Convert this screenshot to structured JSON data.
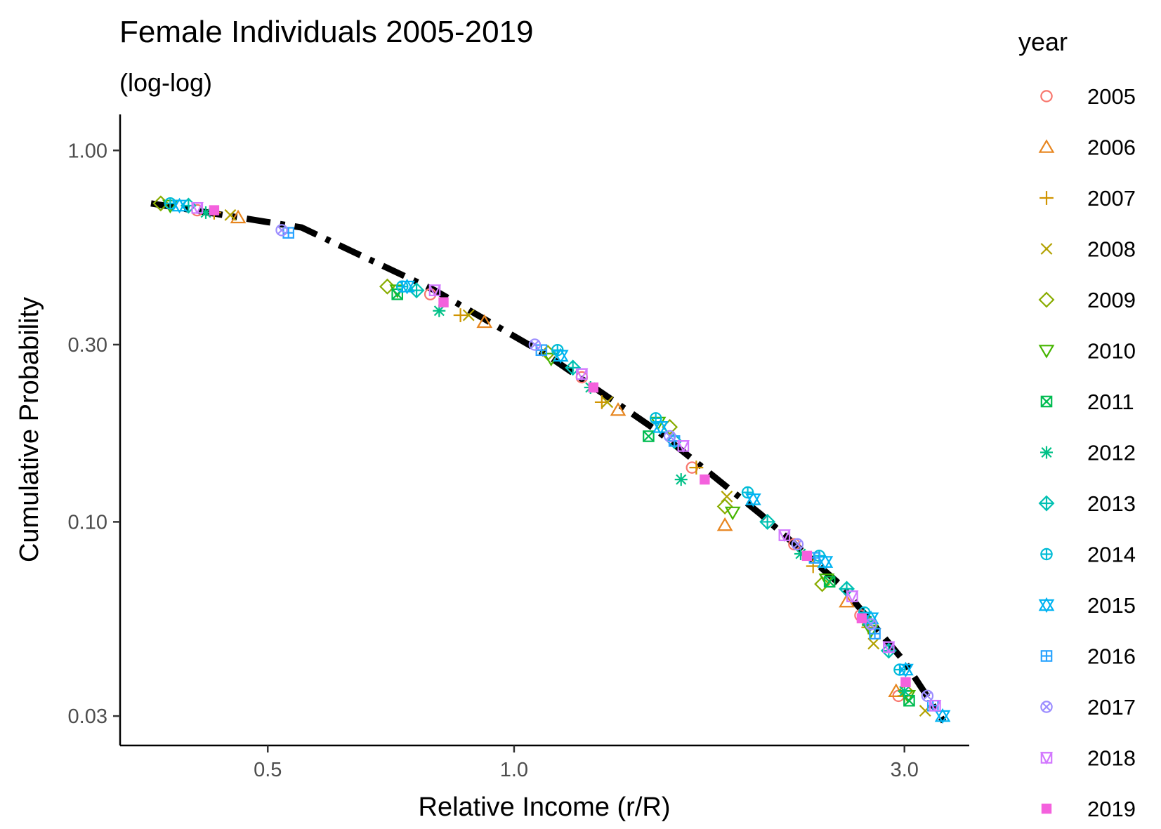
{
  "chart_data": {
    "type": "scatter",
    "title": "Female Individuals 2005-2019",
    "subtitle": "(log-log)",
    "xlabel": "Relative Income (r/R)",
    "ylabel": "Cumulative Probability",
    "x_scale": "log",
    "y_scale": "log",
    "xlim": [
      0.33,
      3.6
    ],
    "ylim": [
      0.025,
      1.25
    ],
    "x_ticks": [
      {
        "value": 0.5,
        "label": "0.5"
      },
      {
        "value": 1.0,
        "label": "1.0"
      },
      {
        "value": 3.0,
        "label": "3.0"
      }
    ],
    "y_ticks": [
      {
        "value": 1.0,
        "label": "1.00"
      },
      {
        "value": 0.3,
        "label": "0.30"
      },
      {
        "value": 0.1,
        "label": "0.10"
      },
      {
        "value": 0.03,
        "label": "0.03"
      }
    ],
    "grid": false,
    "legend_title": "year",
    "legend_position": "right",
    "fit_line": {
      "style": "dash-dot",
      "color": "#000000",
      "points": [
        [
          0.36,
          0.72
        ],
        [
          0.55,
          0.62
        ],
        [
          0.8,
          0.42
        ],
        [
          1.1,
          0.28
        ],
        [
          1.5,
          0.175
        ],
        [
          2.0,
          0.105
        ],
        [
          2.5,
          0.068
        ],
        [
          3.0,
          0.042
        ],
        [
          3.35,
          0.029
        ]
      ]
    },
    "series": [
      {
        "name": "2005",
        "shape": "circle",
        "color": "#F8766D",
        "points": [
          [
            0.41,
            0.69
          ],
          [
            0.79,
            0.41
          ],
          [
            1.21,
            0.245
          ],
          [
            1.65,
            0.14
          ],
          [
            2.2,
            0.087
          ],
          [
            2.65,
            0.056
          ],
          [
            2.95,
            0.034
          ]
        ]
      },
      {
        "name": "2006",
        "shape": "triangle",
        "color": "#E7851E",
        "points": [
          [
            0.46,
            0.66
          ],
          [
            0.92,
            0.345
          ],
          [
            1.34,
            0.2
          ],
          [
            1.81,
            0.098
          ],
          [
            2.55,
            0.061
          ],
          [
            2.93,
            0.035
          ]
        ]
      },
      {
        "name": "2007",
        "shape": "plus",
        "color": "#D09400",
        "points": [
          [
            0.43,
            0.68
          ],
          [
            0.86,
            0.36
          ],
          [
            1.28,
            0.21
          ],
          [
            1.67,
            0.14
          ],
          [
            2.32,
            0.076
          ],
          [
            2.71,
            0.052
          ],
          [
            3.0,
            0.034
          ]
        ]
      },
      {
        "name": "2008",
        "shape": "cross",
        "color": "#B2A100",
        "points": [
          [
            0.45,
            0.67
          ],
          [
            0.88,
            0.36
          ],
          [
            1.3,
            0.21
          ],
          [
            1.82,
            0.117
          ],
          [
            2.75,
            0.047
          ],
          [
            3.18,
            0.031
          ]
        ]
      },
      {
        "name": "2009",
        "shape": "diamond",
        "color": "#89AC00",
        "points": [
          [
            0.37,
            0.72
          ],
          [
            0.7,
            0.43
          ],
          [
            1.1,
            0.285
          ],
          [
            1.55,
            0.18
          ],
          [
            1.81,
            0.11
          ],
          [
            2.38,
            0.068
          ],
          [
            2.72,
            0.053
          ],
          [
            3.01,
            0.035
          ]
        ]
      },
      {
        "name": "2010",
        "shape": "triangle-down",
        "color": "#45B500",
        "points": [
          [
            0.38,
            0.71
          ],
          [
            0.72,
            0.42
          ],
          [
            1.11,
            0.275
          ],
          [
            1.5,
            0.185
          ],
          [
            1.85,
            0.106
          ],
          [
            2.41,
            0.07
          ],
          [
            2.73,
            0.051
          ],
          [
            3.03,
            0.034
          ]
        ]
      },
      {
        "name": "2011",
        "shape": "square-cross",
        "color": "#00BC51",
        "points": [
          [
            0.72,
            0.41
          ],
          [
            1.46,
            0.17
          ],
          [
            2.43,
            0.069
          ],
          [
            3.04,
            0.033
          ]
        ]
      },
      {
        "name": "2012",
        "shape": "asterisk",
        "color": "#00C087",
        "points": [
          [
            0.42,
            0.68
          ],
          [
            0.81,
            0.37
          ],
          [
            1.24,
            0.23
          ],
          [
            1.6,
            0.13
          ],
          [
            2.24,
            0.082
          ],
          [
            2.7,
            0.054
          ],
          [
            3.0,
            0.035
          ]
        ]
      },
      {
        "name": "2013",
        "shape": "diamond-plus",
        "color": "#00C0B2",
        "points": [
          [
            0.4,
            0.71
          ],
          [
            0.76,
            0.42
          ],
          [
            1.18,
            0.26
          ],
          [
            1.57,
            0.165
          ],
          [
            2.04,
            0.1
          ],
          [
            2.55,
            0.066
          ],
          [
            2.87,
            0.045
          ]
        ]
      },
      {
        "name": "2014",
        "shape": "circle-plus",
        "color": "#00BCD6",
        "points": [
          [
            0.38,
            0.72
          ],
          [
            0.73,
            0.43
          ],
          [
            1.13,
            0.29
          ],
          [
            1.49,
            0.19
          ],
          [
            1.93,
            0.12
          ],
          [
            2.36,
            0.081
          ],
          [
            2.68,
            0.057
          ],
          [
            2.96,
            0.04
          ]
        ]
      },
      {
        "name": "2015",
        "shape": "star",
        "color": "#00B3F2",
        "points": [
          [
            0.39,
            0.71
          ],
          [
            0.74,
            0.43
          ],
          [
            1.14,
            0.28
          ],
          [
            1.51,
            0.18
          ],
          [
            1.96,
            0.115
          ],
          [
            2.4,
            0.078
          ],
          [
            2.73,
            0.055
          ],
          [
            3.01,
            0.04
          ],
          [
            3.34,
            0.03
          ]
        ]
      },
      {
        "name": "2016",
        "shape": "square-plus",
        "color": "#29A3FF",
        "points": [
          [
            0.53,
            0.6
          ],
          [
            1.08,
            0.29
          ],
          [
            1.57,
            0.165
          ],
          [
            2.33,
            0.08
          ],
          [
            2.76,
            0.05
          ],
          [
            3.25,
            0.032
          ]
        ]
      },
      {
        "name": "2017",
        "shape": "circle-cross",
        "color": "#9C8DFF",
        "points": [
          [
            0.52,
            0.61
          ],
          [
            1.06,
            0.3
          ],
          [
            1.55,
            0.17
          ],
          [
            2.22,
            0.087
          ],
          [
            2.73,
            0.053
          ],
          [
            3.2,
            0.034
          ]
        ]
      },
      {
        "name": "2018",
        "shape": "square-triangle",
        "color": "#D277FF",
        "points": [
          [
            0.41,
            0.7
          ],
          [
            0.8,
            0.42
          ],
          [
            1.21,
            0.25
          ],
          [
            1.61,
            0.16
          ],
          [
            2.14,
            0.092
          ],
          [
            2.59,
            0.063
          ],
          [
            2.87,
            0.046
          ],
          [
            3.27,
            0.032
          ]
        ]
      },
      {
        "name": "2019",
        "shape": "filled-square",
        "color": "#F461DD",
        "points": [
          [
            0.43,
            0.69
          ],
          [
            0.82,
            0.39
          ],
          [
            1.25,
            0.23
          ],
          [
            1.71,
            0.13
          ],
          [
            2.28,
            0.081
          ],
          [
            2.66,
            0.055
          ],
          [
            3.01,
            0.037
          ]
        ]
      }
    ]
  }
}
